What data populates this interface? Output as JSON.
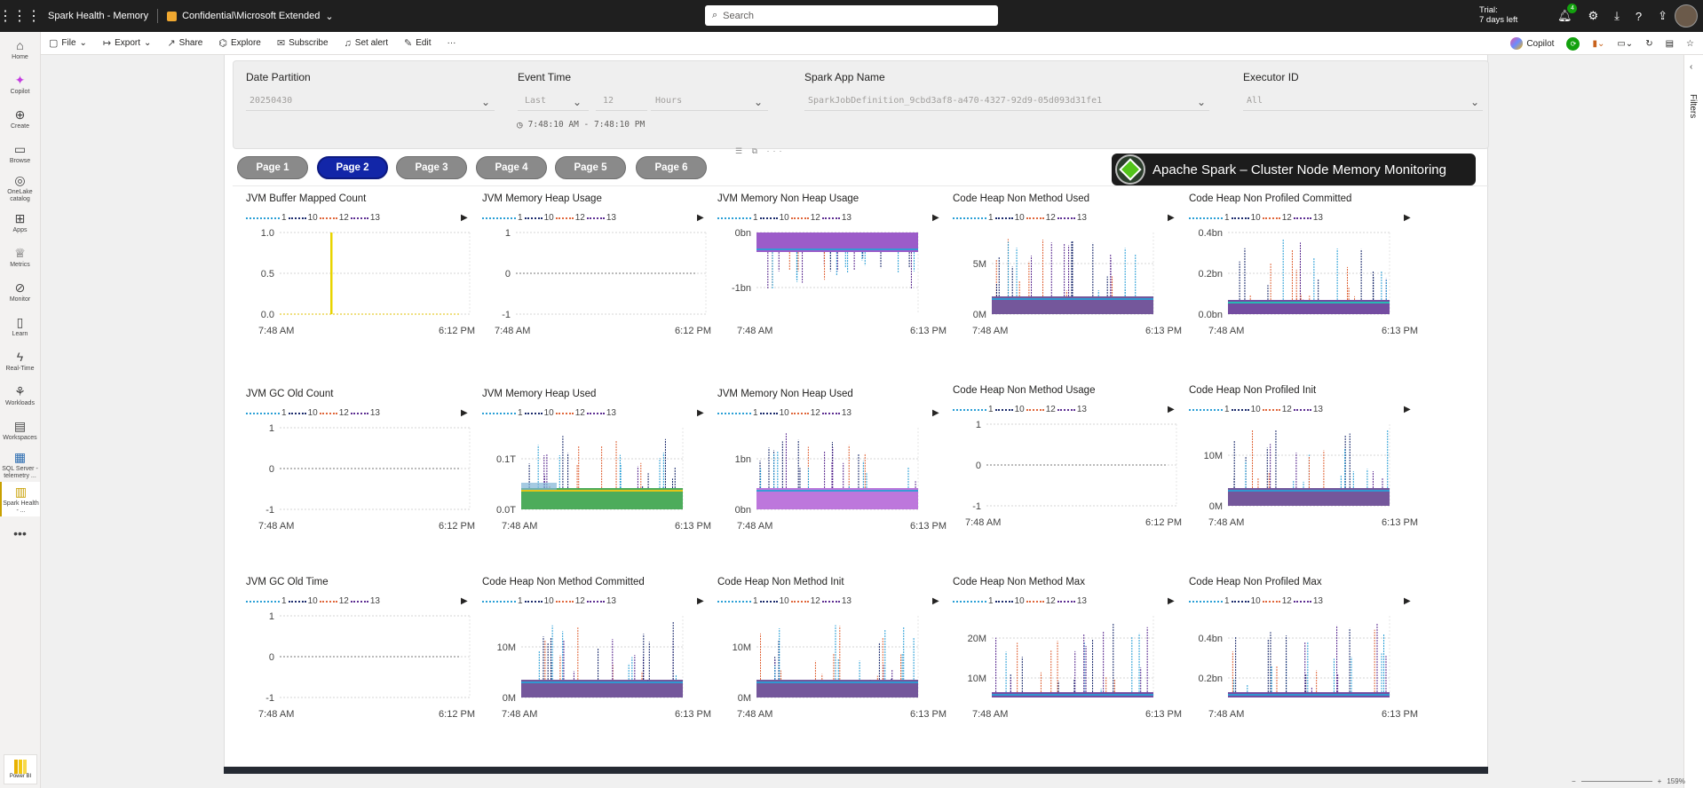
{
  "topbar": {
    "app_title": "Spark Health - Memory",
    "sensitivity": "Confidential\\Microsoft Extended",
    "search_placeholder": "Search",
    "trial_line1": "Trial:",
    "trial_line2": "7 days left",
    "notifications_count": "4"
  },
  "leftnav": [
    {
      "label": "Home",
      "icon": "home-icon",
      "glyph": "⌂"
    },
    {
      "label": "Copilot",
      "icon": "copilot-icon",
      "glyph": "✦"
    },
    {
      "label": "Create",
      "icon": "plus-circle-icon",
      "glyph": "⊕"
    },
    {
      "label": "Browse",
      "icon": "folder-icon",
      "glyph": "▭"
    },
    {
      "label": "OneLake catalog",
      "icon": "onelake-icon",
      "glyph": "◎"
    },
    {
      "label": "Apps",
      "icon": "apps-icon",
      "glyph": "⊞"
    },
    {
      "label": "Metrics",
      "icon": "trophy-icon",
      "glyph": "♕"
    },
    {
      "label": "Monitor",
      "icon": "monitor-icon",
      "glyph": "⊘"
    },
    {
      "label": "Learn",
      "icon": "book-icon",
      "glyph": "▯"
    },
    {
      "label": "Real-Time",
      "icon": "lightning-icon",
      "glyph": "ϟ"
    },
    {
      "label": "Workloads",
      "icon": "workloads-icon",
      "glyph": "⚘"
    },
    {
      "label": "Workspaces",
      "icon": "workspaces-icon",
      "glyph": "▤"
    },
    {
      "label": "SQL Server - telemetry ...",
      "icon": "sql-icon",
      "glyph": "▦"
    },
    {
      "label": "Spark Health - ...",
      "icon": "report-icon",
      "glyph": "▥"
    },
    {
      "label": "",
      "icon": "more-icon",
      "glyph": "•••"
    }
  ],
  "powerbi_label": "Power BI",
  "commands": {
    "file": "File",
    "export": "Export",
    "share": "Share",
    "explore": "Explore",
    "subscribe": "Subscribe",
    "set_alert": "Set alert",
    "edit": "Edit",
    "more": "···",
    "copilot": "Copilot"
  },
  "slicers": {
    "date_partition": {
      "title": "Date Partition",
      "value": "20250430"
    },
    "event_time": {
      "title": "Event Time",
      "mode": "Last",
      "count": "12",
      "unit": "Hours",
      "range": "7:48:10 AM - 7:48:10 PM"
    },
    "spark_app": {
      "title": "Spark App Name",
      "value": "SparkJobDefinition_9cbd3af8-a470-4327-92d9-05d093d31fe1"
    },
    "executor": {
      "title": "Executor ID",
      "value": "All"
    }
  },
  "pages": [
    "Page 1",
    "Page 2",
    "Page 3",
    "Page 4",
    "Page 5",
    "Page 6"
  ],
  "active_page": 1,
  "banner_title": "Apache Spark – Cluster Node Memory Monitoring",
  "filters_label": "Filters",
  "zoom": "159%",
  "legend": {
    "series": [
      {
        "name": "1",
        "color": "#2a9fd6"
      },
      {
        "name": "10",
        "color": "#1a2a6c"
      },
      {
        "name": "12",
        "color": "#e0663a"
      },
      {
        "name": "13",
        "color": "#5c2d91"
      }
    ]
  },
  "chart_data": [
    {
      "type": "line",
      "title": "JVM Buffer Mapped Count",
      "y_ticks": [
        "1.0",
        "0.5",
        "0.0"
      ],
      "x_ticks": [
        "7:48 AM",
        "6:12 PM"
      ],
      "style": "spike-yellow"
    },
    {
      "type": "line",
      "title": "JVM Memory Heap Usage",
      "y_ticks": [
        "1",
        "0",
        "-1"
      ],
      "x_ticks": [
        "7:48 AM",
        "6:12 PM"
      ],
      "style": "flat"
    },
    {
      "type": "area",
      "title": "JVM Memory Non Heap Usage",
      "y_ticks": [
        "0bn",
        "-1bn"
      ],
      "x_ticks": [
        "7:48 AM",
        "6:13 PM"
      ],
      "style": "purple-top"
    },
    {
      "type": "area",
      "title": "Code Heap Non Method Used",
      "y_ticks": [
        "5M",
        "0M"
      ],
      "x_ticks": [
        "7:48 AM",
        "6:13 PM"
      ],
      "style": "purple-bottom"
    },
    {
      "type": "area",
      "title": "Code Heap Non Profiled Committed",
      "y_ticks": [
        "0.4bn",
        "0.2bn",
        "0.0bn"
      ],
      "x_ticks": [
        "7:48 AM",
        "6:13 PM"
      ],
      "style": "teal-bottom"
    },
    {
      "type": "line",
      "title": "JVM GC Old Count",
      "y_ticks": [
        "1",
        "0",
        "-1"
      ],
      "x_ticks": [
        "7:48 AM",
        "6:12 PM"
      ],
      "style": "flat"
    },
    {
      "type": "area",
      "title": "JVM Memory Heap Used",
      "y_ticks": [
        "0.1T",
        "0.0T"
      ],
      "x_ticks": [
        "7:48 AM",
        "6:13 PM"
      ],
      "style": "green-bottom"
    },
    {
      "type": "area",
      "title": "JVM Memory Non Heap Used",
      "y_ticks": [
        "1bn",
        "0bn"
      ],
      "x_ticks": [
        "7:48 AM",
        "6:13 PM"
      ],
      "style": "violet-bottom"
    },
    {
      "type": "line",
      "title": "Code Heap Non Method Usage",
      "y_ticks": [
        "1",
        "0",
        "-1"
      ],
      "x_ticks": [
        "7:48 AM",
        "6:12 PM"
      ],
      "style": "flat"
    },
    {
      "type": "area",
      "title": "Code Heap Non Profiled Init",
      "y_ticks": [
        "10M",
        "0M"
      ],
      "x_ticks": [
        "7:48 AM",
        "6:13 PM"
      ],
      "style": "purple-bottom"
    },
    {
      "type": "line",
      "title": "JVM GC Old Time",
      "y_ticks": [
        "1",
        "0",
        "-1"
      ],
      "x_ticks": [
        "7:48 AM",
        "6:12 PM"
      ],
      "style": "flat"
    },
    {
      "type": "area",
      "title": "Code Heap Non Method Committed",
      "y_ticks": [
        "10M",
        "0M"
      ],
      "x_ticks": [
        "7:48 AM",
        "6:13 PM"
      ],
      "style": "purple-bottom"
    },
    {
      "type": "area",
      "title": "Code Heap Non Method Init",
      "y_ticks": [
        "10M",
        "0M"
      ],
      "x_ticks": [
        "7:48 AM",
        "6:13 PM"
      ],
      "style": "purple-bottom"
    },
    {
      "type": "area",
      "title": "Code Heap Non Method Max",
      "y_ticks": [
        "20M",
        "10M"
      ],
      "x_ticks": [
        "7:48 AM",
        "6:13 PM"
      ],
      "style": "purple-thin"
    },
    {
      "type": "area",
      "title": "Code Heap Non Profiled Max",
      "y_ticks": [
        "0.4bn",
        "0.2bn"
      ],
      "x_ticks": [
        "7:48 AM",
        "6:13 PM"
      ],
      "style": "purple-thin"
    }
  ]
}
